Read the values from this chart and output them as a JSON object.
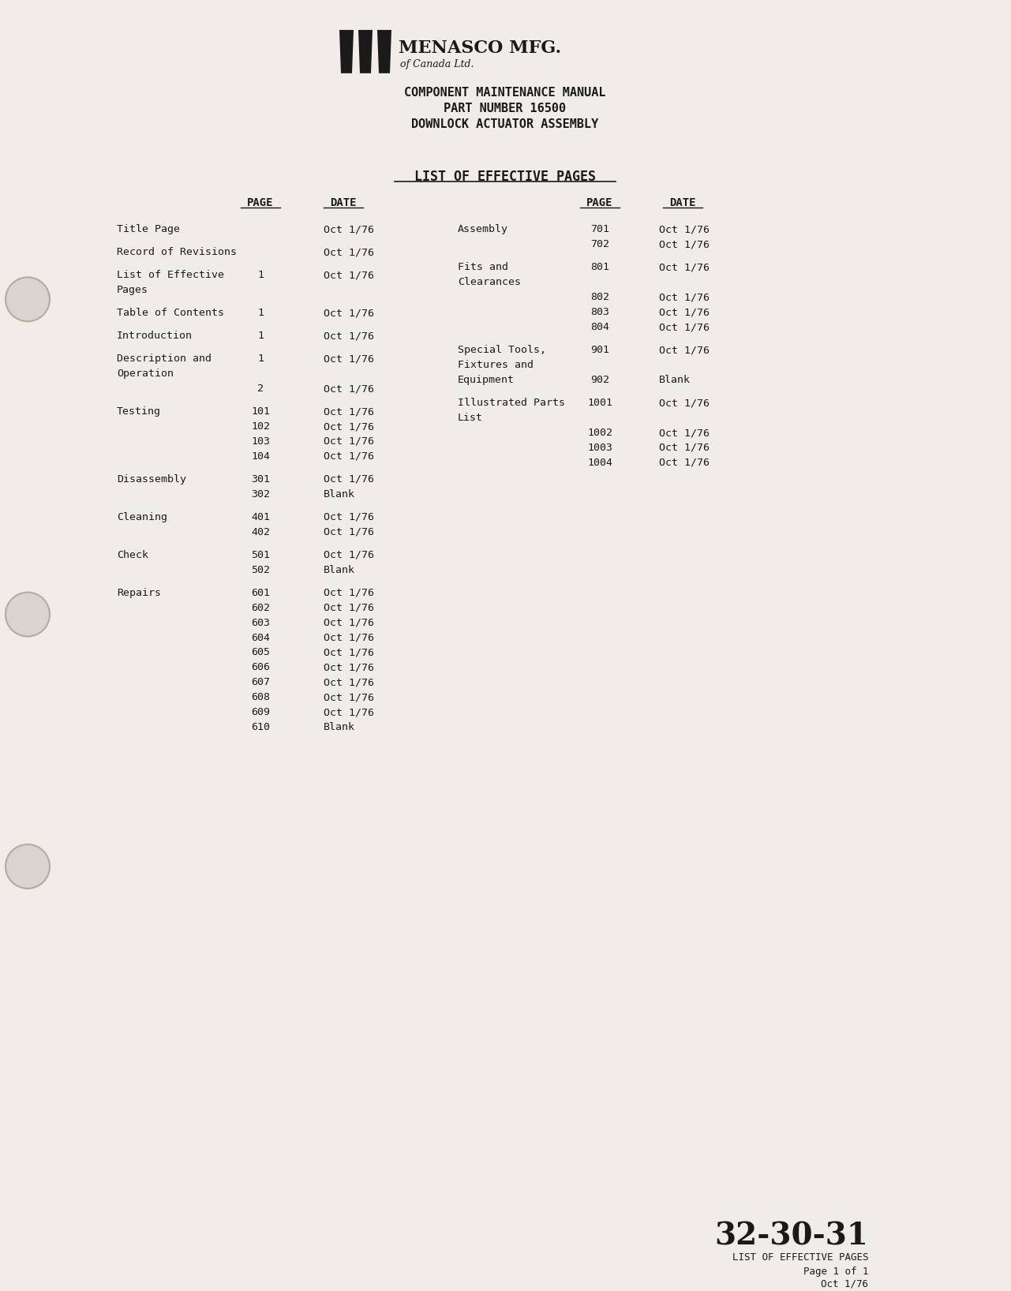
{
  "bg_color": "#f0ede8",
  "text_color": "#1a1a1a",
  "header_title1": "COMPONENT MAINTENANCE MANUAL",
  "header_title2": "PART NUMBER 16500",
  "header_title3": "DOWNLOCK ACTUATOR ASSEMBLY",
  "company_name": "MENASCO MFG.",
  "company_sub": "of Canada Ltd.",
  "section_title": "LIST OF EFFECTIVE PAGES",
  "col_headers": [
    "PAGE",
    "DATE",
    "PAGE",
    "DATE"
  ],
  "left_entries": [
    {
      "label": "Title Page",
      "label2": "",
      "page": "",
      "date": "Oct 1/76"
    },
    {
      "label": "Record of Revisions",
      "label2": "",
      "page": "",
      "date": "Oct 1/76"
    },
    {
      "label": "List of Effective",
      "label2": "Pages",
      "page": "1",
      "date": "Oct 1/76"
    },
    {
      "label": "Table of Contents",
      "label2": "",
      "page": "1",
      "date": "Oct 1/76"
    },
    {
      "label": "Introduction",
      "label2": "",
      "page": "1",
      "date": "Oct 1/76"
    },
    {
      "label": "Description and",
      "label2": "Operation",
      "page": "1",
      "date": "Oct 1/76"
    },
    {
      "label": "",
      "label2": "",
      "page": "2",
      "date": "Oct 1/76"
    },
    {
      "label": "Testing",
      "label2": "",
      "page": "101",
      "date": "Oct 1/76"
    },
    {
      "label": "",
      "label2": "",
      "page": "102",
      "date": "Oct 1/76"
    },
    {
      "label": "",
      "label2": "",
      "page": "103",
      "date": "Oct 1/76"
    },
    {
      "label": "",
      "label2": "",
      "page": "104",
      "date": "Oct 1/76"
    },
    {
      "label": "Disassembly",
      "label2": "",
      "page": "301",
      "date": "Oct 1/76"
    },
    {
      "label": "",
      "label2": "",
      "page": "302",
      "date": "Blank"
    },
    {
      "label": "Cleaning",
      "label2": "",
      "page": "401",
      "date": "Oct 1/76"
    },
    {
      "label": "",
      "label2": "",
      "page": "402",
      "date": "Oct 1/76"
    },
    {
      "label": "Check",
      "label2": "",
      "page": "501",
      "date": "Oct 1/76"
    },
    {
      "label": "",
      "label2": "",
      "page": "502",
      "date": "Blank"
    },
    {
      "label": "Repairs",
      "label2": "",
      "page": "601",
      "date": "Oct 1/76"
    },
    {
      "label": "",
      "label2": "",
      "page": "602",
      "date": "Oct 1/76"
    },
    {
      "label": "",
      "label2": "",
      "page": "603",
      "date": "Oct 1/76"
    },
    {
      "label": "",
      "label2": "",
      "page": "604",
      "date": "Oct 1/76"
    },
    {
      "label": "",
      "label2": "",
      "page": "605",
      "date": "Oct 1/76"
    },
    {
      "label": "",
      "label2": "",
      "page": "606",
      "date": "Oct 1/76"
    },
    {
      "label": "",
      "label2": "",
      "page": "607",
      "date": "Oct 1/76"
    },
    {
      "label": "",
      "label2": "",
      "page": "608",
      "date": "Oct 1/76"
    },
    {
      "label": "",
      "label2": "",
      "page": "609",
      "date": "Oct 1/76"
    },
    {
      "label": "",
      "label2": "",
      "page": "610",
      "date": "Blank"
    }
  ],
  "right_entries": [
    {
      "label": "Assembly",
      "label2": "",
      "page": "701",
      "date": "Oct 1/76"
    },
    {
      "label": "",
      "label2": "",
      "page": "702",
      "date": "Oct 1/76"
    },
    {
      "label": "Fits and",
      "label2": "Clearances",
      "page": "801",
      "date": "Oct 1/76"
    },
    {
      "label": "",
      "label2": "",
      "page": "802",
      "date": "Oct 1/76"
    },
    {
      "label": "",
      "label2": "",
      "page": "803",
      "date": "Oct 1/76"
    },
    {
      "label": "",
      "label2": "",
      "page": "804",
      "date": "Oct 1/76"
    },
    {
      "label": "Special Tools,",
      "label2": "Fixtures and",
      "page": "901",
      "date": "Oct 1/76"
    },
    {
      "label": "Equipment",
      "label2": "",
      "page": "902",
      "date": "Blank"
    },
    {
      "label": "Illustrated Parts",
      "label2": "List",
      "page": "1001",
      "date": "Oct 1/76"
    },
    {
      "label": "",
      "label2": "",
      "page": "1002",
      "date": "Oct 1/76"
    },
    {
      "label": "",
      "label2": "",
      "page": "1003",
      "date": "Oct 1/76"
    },
    {
      "label": "",
      "label2": "",
      "page": "1004",
      "date": "Oct 1/76"
    }
  ],
  "footer_large": "32-30-31",
  "footer_line2": "LIST OF EFFECTIVE PAGES",
  "footer_line3": "Page 1 of 1",
  "footer_line4": "Oct 1/76"
}
